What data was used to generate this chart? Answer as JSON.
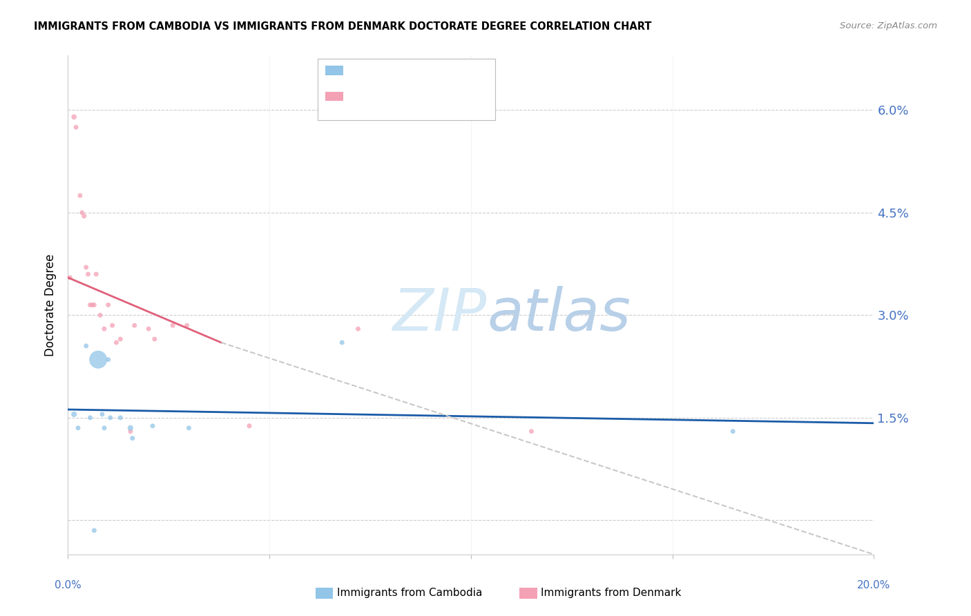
{
  "title": "IMMIGRANTS FROM CAMBODIA VS IMMIGRANTS FROM DENMARK DOCTORATE DEGREE CORRELATION CHART",
  "source": "Source: ZipAtlas.com",
  "ylabel": "Doctorate Degree",
  "yticks": [
    0.0,
    1.5,
    3.0,
    4.5,
    6.0
  ],
  "xlim": [
    0.0,
    20.0
  ],
  "ylim": [
    -0.5,
    6.8
  ],
  "color_cambodia": "#92C5E8",
  "color_denmark": "#F4A0B5",
  "color_line_cambodia": "#1A5BA8",
  "color_line_denmark": "#E0607A",
  "color_dashed": "#C8C8C8",
  "color_axis_labels": "#4472C4",
  "watermark_color": "#D5E8F5",
  "cambodia_x": [
    0.15,
    0.25,
    0.45,
    0.55,
    0.65,
    0.75,
    0.85,
    0.9,
    1.0,
    1.05,
    1.3,
    1.55,
    1.6,
    2.1,
    3.0,
    6.8,
    16.5
  ],
  "cambodia_y": [
    1.55,
    1.35,
    2.55,
    1.5,
    -0.15,
    2.35,
    1.55,
    1.35,
    2.35,
    1.5,
    1.5,
    1.35,
    1.2,
    1.38,
    1.35,
    2.6,
    1.3
  ],
  "cambodia_size": [
    35,
    25,
    25,
    25,
    25,
    350,
    25,
    25,
    25,
    25,
    25,
    35,
    25,
    25,
    25,
    25,
    25
  ],
  "denmark_x": [
    0.05,
    0.15,
    0.2,
    0.3,
    0.35,
    0.4,
    0.45,
    0.5,
    0.55,
    0.6,
    0.65,
    0.7,
    0.8,
    0.9,
    1.0,
    1.1,
    1.2,
    1.3,
    1.55,
    1.65,
    2.0,
    2.15,
    2.6,
    2.95,
    4.5,
    7.2,
    11.5
  ],
  "denmark_y": [
    3.55,
    5.9,
    5.75,
    4.75,
    4.5,
    4.45,
    3.7,
    3.6,
    3.15,
    3.15,
    3.15,
    3.6,
    3.0,
    2.8,
    3.15,
    2.85,
    2.6,
    2.65,
    1.3,
    2.85,
    2.8,
    2.65,
    2.85,
    2.85,
    1.38,
    2.8,
    1.3
  ],
  "denmark_size": [
    25,
    30,
    25,
    25,
    25,
    25,
    25,
    25,
    25,
    25,
    25,
    25,
    25,
    25,
    25,
    25,
    25,
    25,
    25,
    25,
    25,
    25,
    25,
    25,
    25,
    25,
    25
  ],
  "trend_cambodia_x0": 0.0,
  "trend_cambodia_y0": 1.62,
  "trend_cambodia_x1": 20.0,
  "trend_cambodia_y1": 1.42,
  "trend_denmark_solid_x0": 0.0,
  "trend_denmark_solid_y0": 3.55,
  "trend_denmark_solid_x1": 3.8,
  "trend_denmark_solid_y1": 2.6,
  "trend_denmark_dash_x0": 3.8,
  "trend_denmark_dash_y0": 2.6,
  "trend_denmark_dash_x1": 20.0,
  "trend_denmark_dash_y1": -0.5
}
